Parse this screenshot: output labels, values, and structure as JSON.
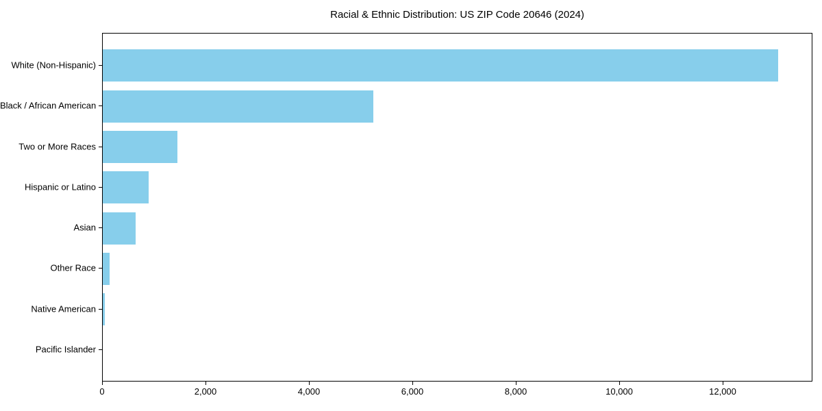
{
  "title": "Racial & Ethnic Distribution: US ZIP Code 20646 (2024)",
  "chart_data": {
    "type": "bar",
    "orientation": "horizontal",
    "title": "Racial & Ethnic Distribution: US ZIP Code 20646 (2024)",
    "categories": [
      "White (Non-Hispanic)",
      "Black / African American",
      "Two or More Races",
      "Hispanic or Latino",
      "Asian",
      "Other Race",
      "Native American",
      "Pacific Islander"
    ],
    "values": [
      13070,
      5240,
      1440,
      890,
      630,
      130,
      45,
      0
    ],
    "xlabel": "",
    "ylabel": "",
    "xlim": [
      0,
      13720
    ],
    "xticks": [
      0,
      2000,
      4000,
      6000,
      8000,
      10000,
      12000
    ],
    "xtick_labels": [
      "0",
      "2,000",
      "4,000",
      "6,000",
      "8,000",
      "10,000",
      "12,000"
    ],
    "bar_color": "#87CEEB",
    "axis_color": "#000000",
    "background_color": "#FFFFFF",
    "grid": false,
    "legend": null
  }
}
